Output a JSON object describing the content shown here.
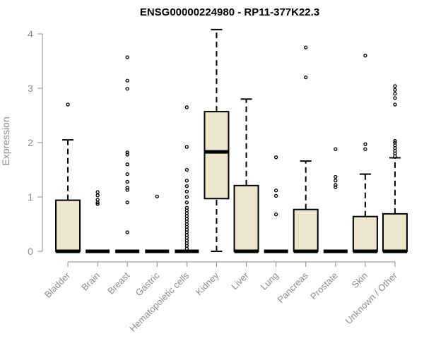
{
  "chart_data": {
    "type": "boxplot",
    "title": "ENSG00000224980 - RP11-377K22.3",
    "xlabel": "",
    "ylabel": "Expression",
    "ylim": [
      0,
      4.1
    ],
    "yticks": [
      0,
      1,
      2,
      3,
      4
    ],
    "grid": false,
    "legend": "none",
    "colors": {
      "box_fill": "#ede6cc",
      "stroke": "#000000",
      "axis": "#8c8c8c"
    },
    "categories": [
      "Bladder",
      "Brain",
      "Breast",
      "Gastric",
      "Hematopoietic cells",
      "Kidney",
      "Liver",
      "Lung",
      "Pancreas",
      "Prostate",
      "Skin",
      "Unknown / Other"
    ],
    "boxes": [
      {
        "category": "Bladder",
        "min": 0,
        "q1": 0,
        "median": 0,
        "q3": 0.94,
        "max": 2.05,
        "outliers": [
          2.7
        ]
      },
      {
        "category": "Brain",
        "min": 0,
        "q1": 0,
        "median": 0,
        "q3": 0,
        "max": 0,
        "outliers": [
          0.87,
          0.9,
          0.95,
          1.03,
          1.09
        ]
      },
      {
        "category": "Breast",
        "min": 0,
        "q1": 0,
        "median": 0,
        "q3": 0,
        "max": 0,
        "outliers": [
          0.35,
          0.9,
          1.13,
          1.17,
          1.28,
          1.42,
          1.6,
          1.78,
          1.82,
          2.99,
          3.14,
          3.57
        ]
      },
      {
        "category": "Gastric",
        "min": 0,
        "q1": 0,
        "median": 0,
        "q3": 0,
        "max": 0,
        "outliers": [
          1.01
        ]
      },
      {
        "category": "Hematopoietic cells",
        "min": 0,
        "q1": 0,
        "median": 0,
        "q3": 0,
        "max": 0,
        "outliers": [
          0.05,
          0.1,
          0.15,
          0.2,
          0.25,
          0.3,
          0.35,
          0.4,
          0.45,
          0.5,
          0.55,
          0.6,
          0.65,
          0.7,
          0.75,
          0.8,
          0.9,
          1.0,
          1.1,
          1.2,
          1.3,
          1.5,
          1.92,
          2.65
        ]
      },
      {
        "category": "Kidney",
        "min": 0,
        "q1": 0.97,
        "median": 1.83,
        "q3": 2.57,
        "max": 4.08,
        "outliers": []
      },
      {
        "category": "Liver",
        "min": 0,
        "q1": 0,
        "median": 0,
        "q3": 1.21,
        "max": 2.8,
        "outliers": []
      },
      {
        "category": "Lung",
        "min": 0,
        "q1": 0,
        "median": 0,
        "q3": 0,
        "max": 0,
        "outliers": [
          0.68,
          1.02,
          1.12,
          1.73
        ]
      },
      {
        "category": "Pancreas",
        "min": 0,
        "q1": 0,
        "median": 0,
        "q3": 0.77,
        "max": 1.66,
        "outliers": [
          3.2,
          3.75
        ]
      },
      {
        "category": "Prostate",
        "min": 0,
        "q1": 0,
        "median": 0,
        "q3": 0,
        "max": 0,
        "outliers": [
          1.18,
          1.22,
          1.3,
          1.37,
          1.88
        ]
      },
      {
        "category": "Skin",
        "min": 0,
        "q1": 0,
        "median": 0,
        "q3": 0.64,
        "max": 1.42,
        "outliers": [
          1.88,
          1.97,
          3.6
        ]
      },
      {
        "category": "Unknown / Other",
        "min": 0,
        "q1": 0,
        "median": 0,
        "q3": 0.69,
        "max": 1.72,
        "outliers": [
          1.75,
          1.8,
          1.85,
          1.9,
          1.95,
          2.0,
          2.03,
          2.7,
          2.82,
          2.9,
          2.97,
          3.04
        ]
      }
    ]
  }
}
